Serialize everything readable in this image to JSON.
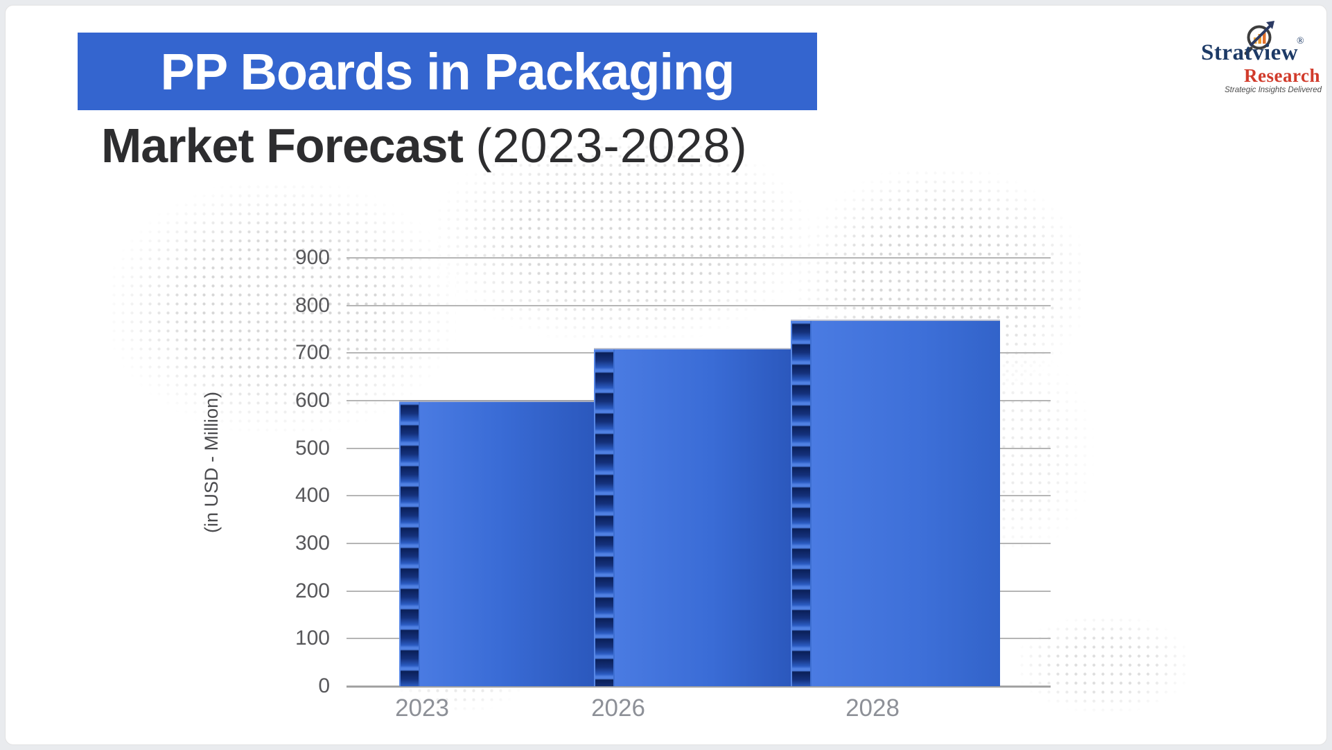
{
  "header": {
    "title_badge": "PP Boards in Packaging",
    "subtitle_bold": "Market Forecast",
    "subtitle_light": "(2023-2028)",
    "badge_color": "#3465cf"
  },
  "logo": {
    "brand_top": "Stratview",
    "registered_mark": "®",
    "brand_bottom": "Research",
    "tagline": "Strategic Insights Delivered",
    "icon": "magnifier-growth-chart-icon",
    "colors": {
      "brand_top": "#1d3a66",
      "brand_bottom": "#d13b2b",
      "tagline": "#4c4c4c"
    }
  },
  "chart_data": {
    "type": "bar",
    "title": "PP Boards in Packaging Market Forecast (2023-2028)",
    "categories": [
      "2023",
      "2026",
      "2028"
    ],
    "values": [
      600,
      710,
      770
    ],
    "values_note": "bars unlabeled in source; values estimated from gridlines",
    "xlabel": "",
    "ylabel": "(in USD - Million)",
    "ylim": [
      0,
      900
    ],
    "yticks": [
      0,
      100,
      200,
      300,
      400,
      500,
      600,
      700,
      800,
      900
    ],
    "grid": "horizontal",
    "legend": "none",
    "bar_color": "#3a6cd6",
    "bar_texture": "corrugated PP-board fluted left edge with dark navy cells"
  }
}
